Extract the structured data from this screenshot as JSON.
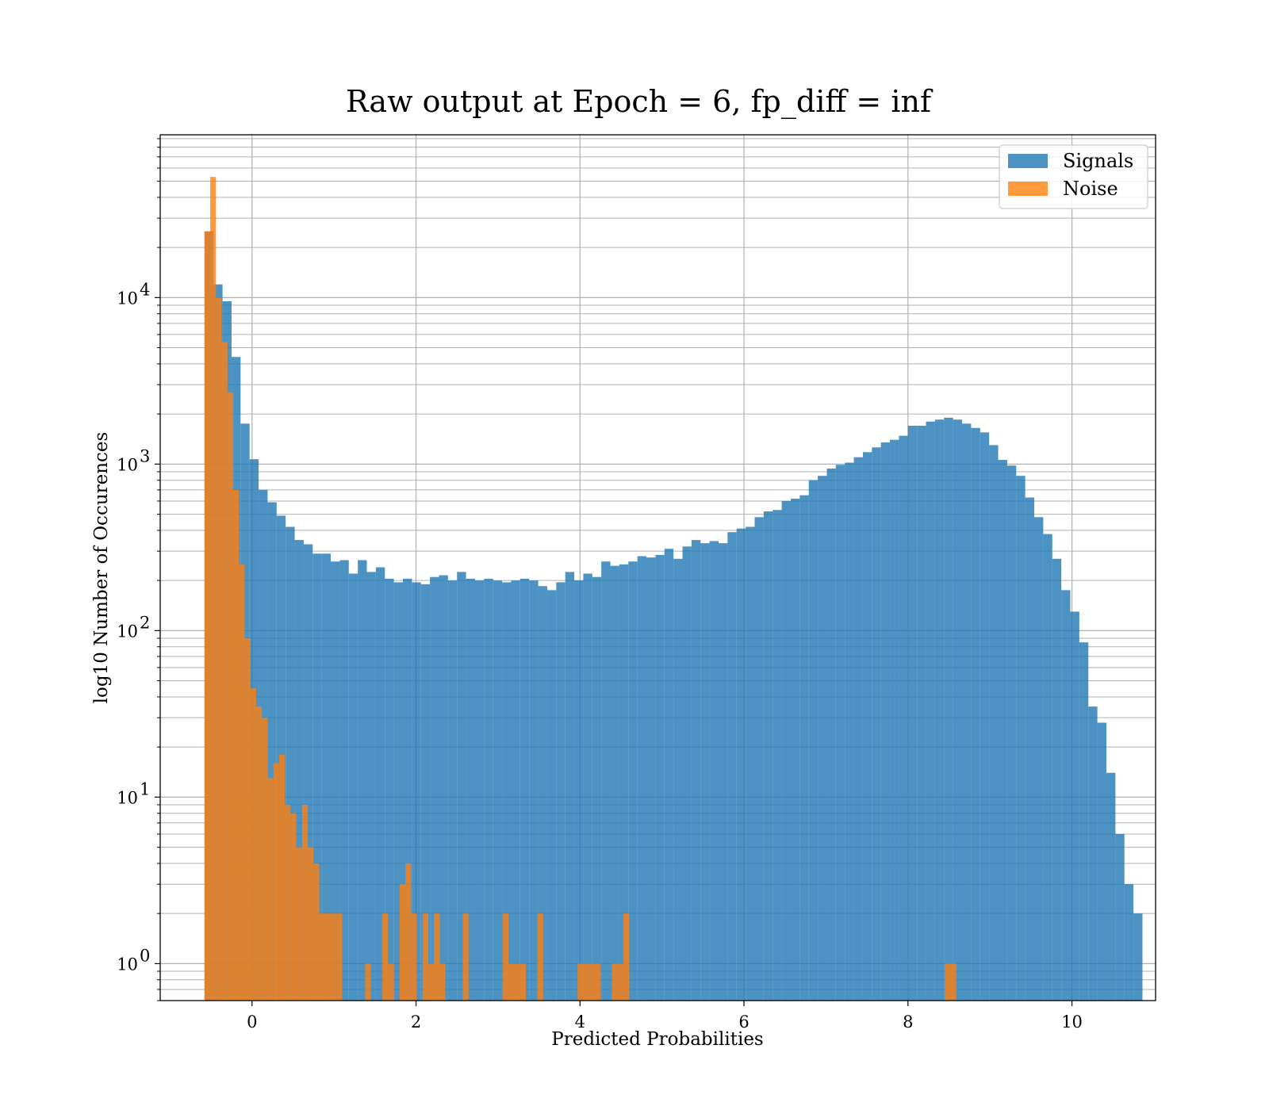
{
  "chart_data": {
    "type": "bar",
    "title": "Raw output at Epoch = 6, fp_diff = inf",
    "xlabel": "Predicted Probabilities",
    "ylabel": "log10 Number of Occurences",
    "x_scale": "linear",
    "y_scale": "log",
    "xlim": [
      -1.12,
      11.02
    ],
    "ylim": [
      0.6,
      95000
    ],
    "x_ticks": [
      0,
      2,
      4,
      6,
      8,
      10
    ],
    "y_ticks": [
      {
        "base": "10",
        "exp": "0",
        "value": 1
      },
      {
        "base": "10",
        "exp": "1",
        "value": 10
      },
      {
        "base": "10",
        "exp": "2",
        "value": 100
      },
      {
        "base": "10",
        "exp": "3",
        "value": 1000
      },
      {
        "base": "10",
        "exp": "4",
        "value": 10000
      }
    ],
    "grid": true,
    "legend_position": "top-right",
    "series": [
      {
        "name": "Signals",
        "color": "#1f77b4",
        "opacity": 0.8,
        "bin_start": -0.58,
        "bin_width": 0.11,
        "values": [
          25000,
          12000,
          9500,
          4400,
          1750,
          1070,
          700,
          590,
          490,
          420,
          350,
          330,
          290,
          290,
          260,
          265,
          220,
          265,
          225,
          240,
          205,
          195,
          205,
          195,
          190,
          210,
          215,
          200,
          225,
          205,
          200,
          205,
          200,
          195,
          200,
          205,
          200,
          185,
          175,
          195,
          225,
          200,
          220,
          210,
          260,
          245,
          250,
          260,
          280,
          275,
          285,
          310,
          270,
          320,
          350,
          335,
          345,
          335,
          390,
          410,
          420,
          480,
          520,
          530,
          600,
          620,
          650,
          800,
          850,
          940,
          990,
          1020,
          1100,
          1180,
          1260,
          1350,
          1400,
          1480,
          1700,
          1700,
          1800,
          1850,
          1900,
          1850,
          1750,
          1650,
          1550,
          1300,
          1060,
          980,
          850,
          630,
          480,
          380,
          270,
          175,
          130,
          85,
          35,
          28,
          14,
          6,
          3,
          2
        ]
      },
      {
        "name": "Noise",
        "color": "#ff7f0e",
        "opacity": 0.8,
        "bin_start": -0.58,
        "bin_width": 0.07,
        "values": [
          25000,
          53000,
          10000,
          5400,
          2700,
          700,
          250,
          90,
          45,
          35,
          30,
          13,
          16,
          18,
          9,
          8,
          5,
          9,
          5,
          4,
          2,
          2,
          2,
          2,
          0,
          0,
          0,
          0,
          1,
          0,
          0,
          2,
          1,
          0,
          3,
          4,
          2,
          0,
          2,
          1,
          2,
          1,
          0,
          0,
          0,
          2,
          0,
          0,
          0,
          0,
          0,
          0,
          2,
          1,
          1,
          1,
          0,
          0,
          2,
          0,
          0,
          0,
          0,
          0,
          0,
          1,
          1,
          1,
          1,
          0,
          0,
          1,
          1,
          2,
          0,
          0,
          0,
          0,
          0,
          0,
          0,
          0,
          0,
          0,
          0,
          0,
          0,
          0,
          0,
          0,
          0,
          0,
          0,
          0,
          0,
          0,
          0,
          0,
          0,
          0,
          0,
          0,
          0,
          0,
          0,
          0,
          0,
          0,
          0,
          0,
          0,
          0,
          0,
          0,
          0,
          0,
          0,
          0,
          0,
          0,
          0,
          0,
          0,
          0,
          0,
          0,
          0,
          0,
          0,
          1,
          1
        ]
      }
    ]
  }
}
